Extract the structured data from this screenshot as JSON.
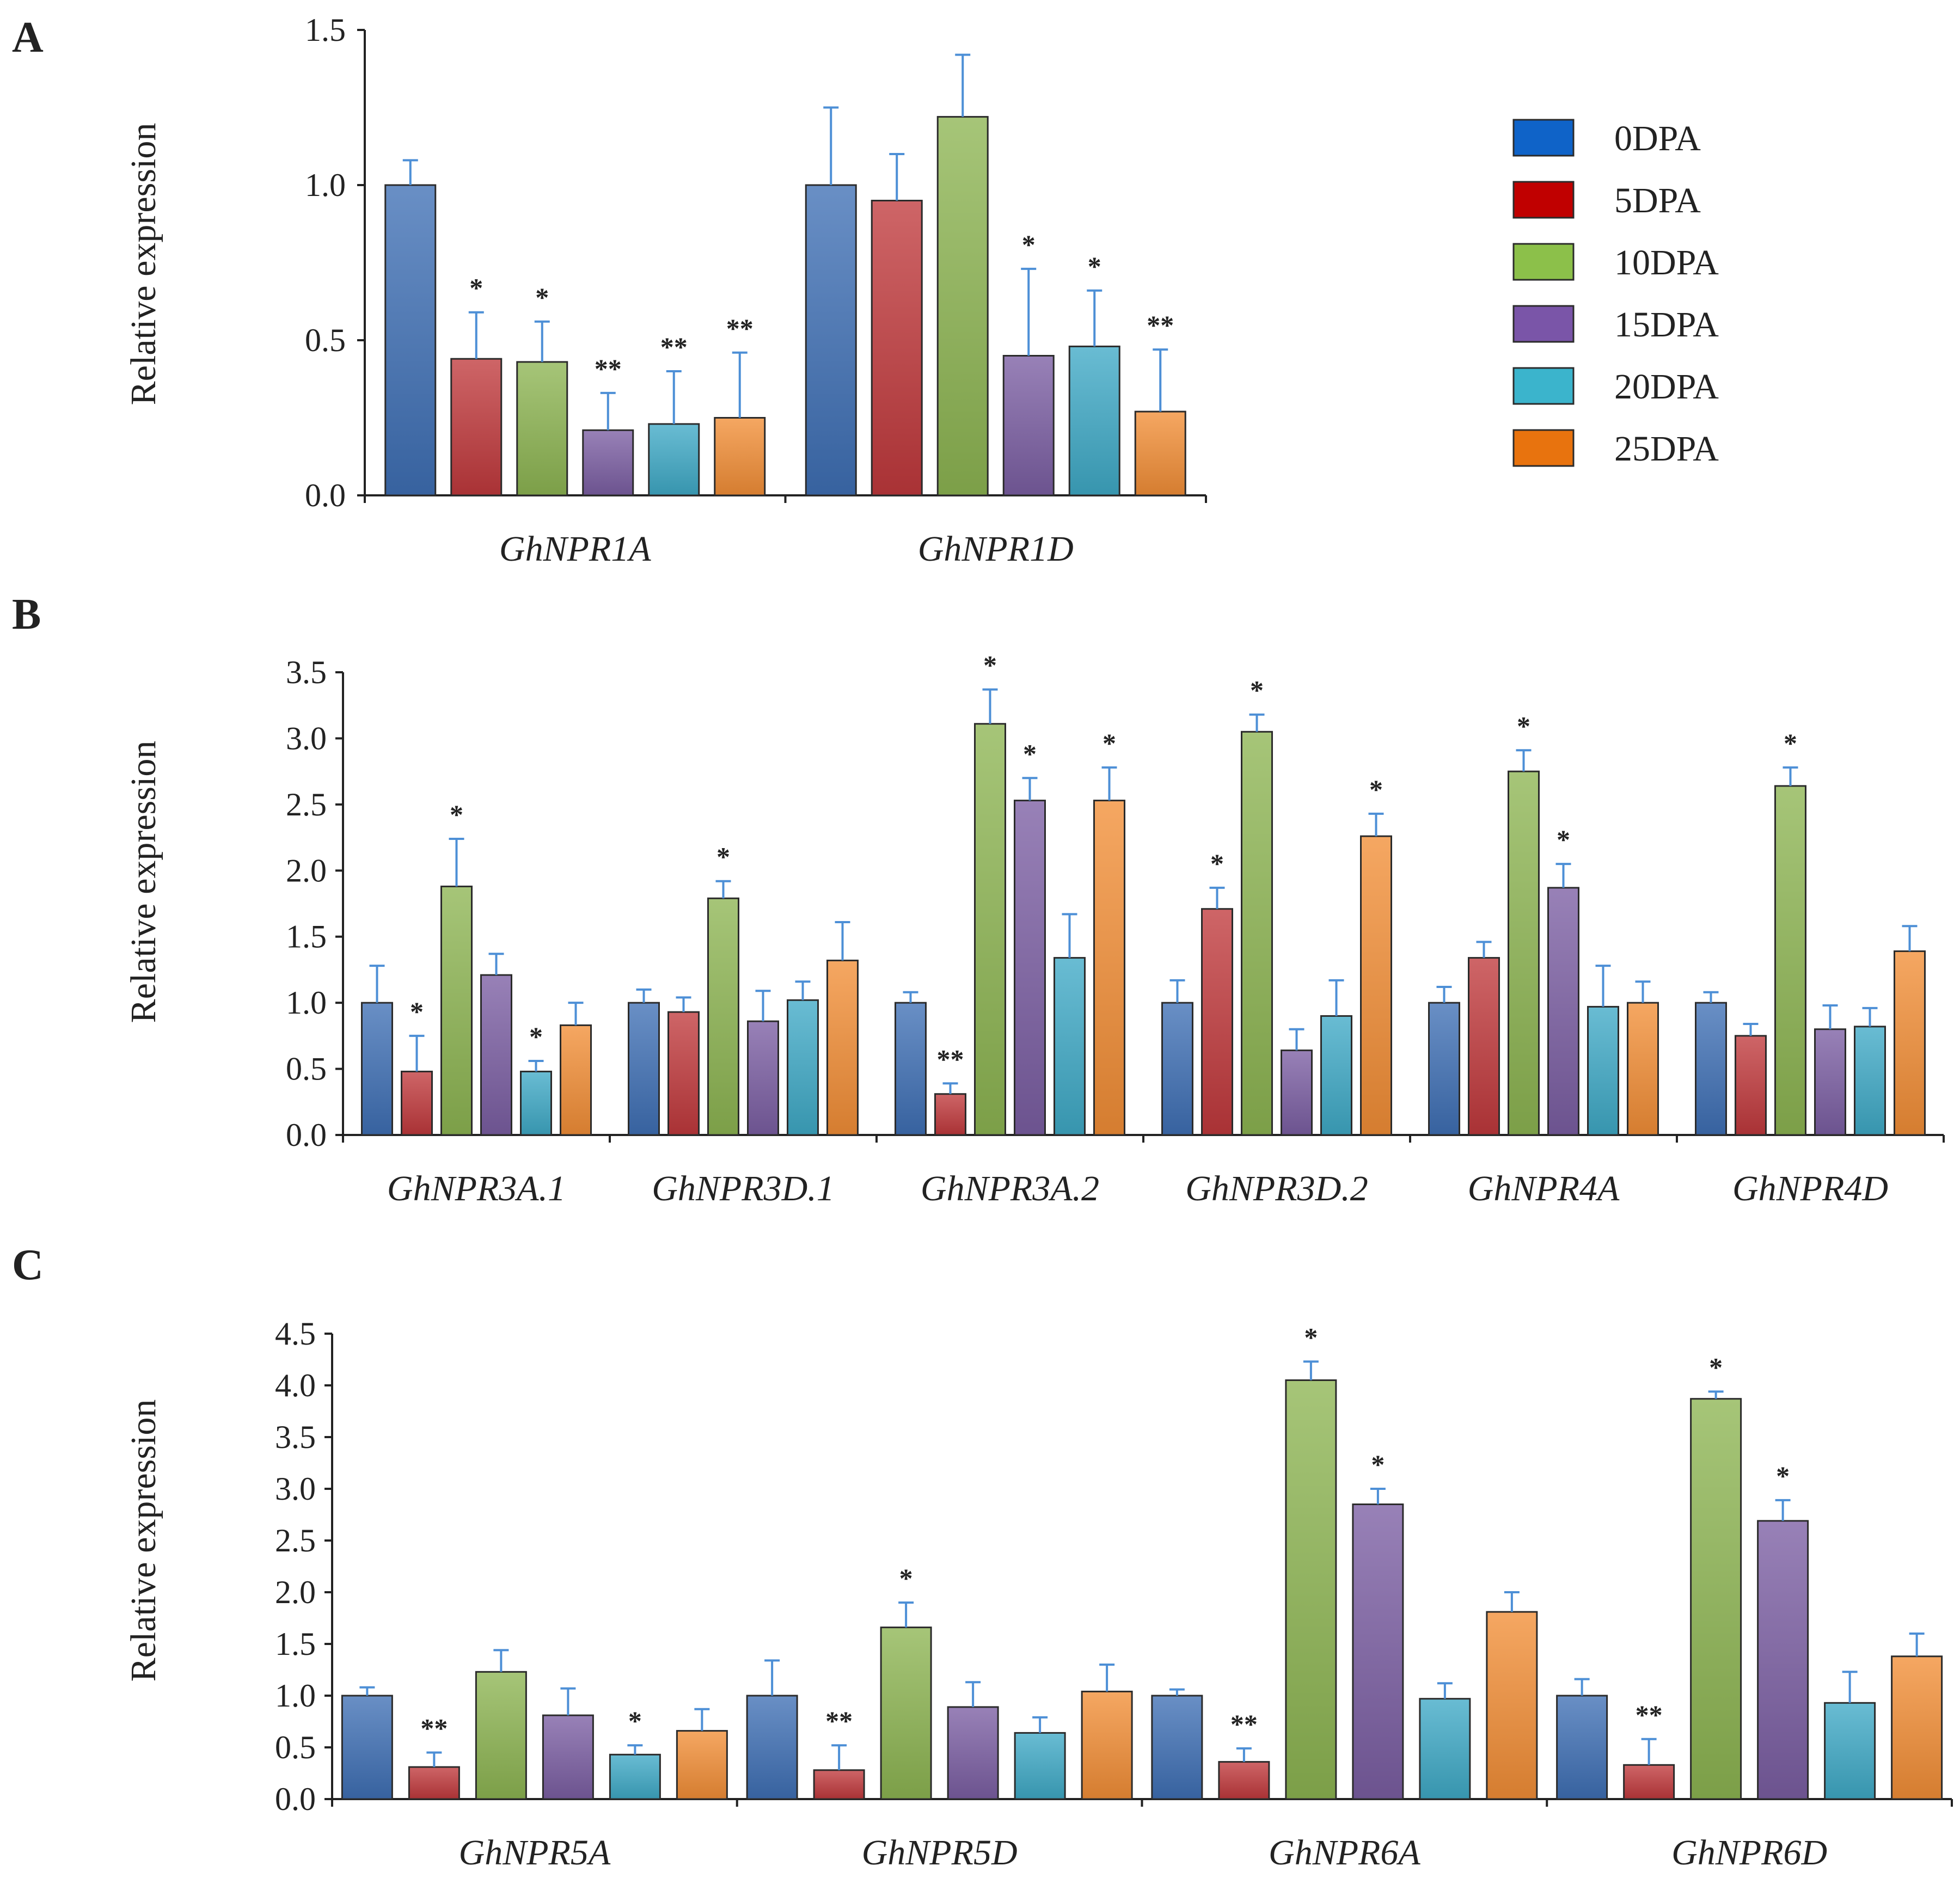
{
  "series_colors": {
    "0DPA": "#3F6FB5",
    "5DPA": "#C0393C",
    "10DPA": "#8DB552",
    "15DPA": "#7B5EA3",
    "20DPA": "#3FA9C6",
    "25DPA": "#F28E36"
  },
  "legend": {
    "entries": [
      {
        "label": "0DPA",
        "color": "#0F63C8"
      },
      {
        "label": "5DPA",
        "color": "#C00000"
      },
      {
        "label": "10DPA",
        "color": "#8CC04A"
      },
      {
        "label": "15DPA",
        "color": "#7A55A8"
      },
      {
        "label": "20DPA",
        "color": "#3BB4CC"
      },
      {
        "label": "25DPA",
        "color": "#E8730E"
      }
    ]
  },
  "chart_data": [
    {
      "panel": "A",
      "type": "bar",
      "ylabel": "Relative expression",
      "ylim": [
        0,
        1.5
      ],
      "yticks": [
        "0.0",
        "0.5",
        "1.0",
        "1.5"
      ],
      "categories": [
        "GhNPR1A",
        "GhNPR1D"
      ],
      "series": [
        {
          "name": "0DPA",
          "values": [
            1.0,
            1.0
          ],
          "errors": [
            0.08,
            0.25
          ],
          "sig": [
            "",
            ""
          ]
        },
        {
          "name": "5DPA",
          "values": [
            0.44,
            0.95
          ],
          "errors": [
            0.15,
            0.15
          ],
          "sig": [
            "*",
            ""
          ]
        },
        {
          "name": "10DPA",
          "values": [
            0.43,
            1.22
          ],
          "errors": [
            0.13,
            0.2
          ],
          "sig": [
            "*",
            ""
          ]
        },
        {
          "name": "15DPA",
          "values": [
            0.21,
            0.45
          ],
          "errors": [
            0.12,
            0.28
          ],
          "sig": [
            "**",
            "*"
          ]
        },
        {
          "name": "20DPA",
          "values": [
            0.23,
            0.48
          ],
          "errors": [
            0.17,
            0.18
          ],
          "sig": [
            "**",
            "*"
          ]
        },
        {
          "name": "25DPA",
          "values": [
            0.25,
            0.27
          ],
          "errors": [
            0.21,
            0.2
          ],
          "sig": [
            "**",
            "**"
          ]
        }
      ]
    },
    {
      "panel": "B",
      "type": "bar",
      "ylabel": "Relative expression",
      "ylim": [
        0,
        3.5
      ],
      "yticks": [
        "0.0",
        "0.5",
        "1.0",
        "1.5",
        "2.0",
        "2.5",
        "3.0",
        "3.5"
      ],
      "categories": [
        "GhNPR3A.1",
        "GhNPR3D.1",
        "GhNPR3A.2",
        "GhNPR3D.2",
        "GhNPR4A",
        "GhNPR4D"
      ],
      "series": [
        {
          "name": "0DPA",
          "values": [
            1.0,
            1.0,
            1.0,
            1.0,
            1.0,
            1.0
          ],
          "errors": [
            0.28,
            0.1,
            0.08,
            0.17,
            0.12,
            0.08
          ],
          "sig": [
            "",
            "",
            "",
            "",
            "",
            ""
          ]
        },
        {
          "name": "5DPA",
          "values": [
            0.48,
            0.93,
            0.31,
            1.71,
            1.34,
            0.75
          ],
          "errors": [
            0.27,
            0.11,
            0.08,
            0.16,
            0.12,
            0.09
          ],
          "sig": [
            "*",
            "",
            "**",
            "*",
            "",
            ""
          ]
        },
        {
          "name": "10DPA",
          "values": [
            1.88,
            1.79,
            3.11,
            3.05,
            2.75,
            2.64
          ],
          "errors": [
            0.36,
            0.13,
            0.26,
            0.13,
            0.16,
            0.14
          ],
          "sig": [
            "*",
            "*",
            "*",
            "*",
            "*",
            "*"
          ]
        },
        {
          "name": "15DPA",
          "values": [
            1.21,
            0.86,
            2.53,
            0.64,
            1.87,
            0.8
          ],
          "errors": [
            0.16,
            0.23,
            0.17,
            0.16,
            0.18,
            0.18
          ],
          "sig": [
            "",
            "",
            "*",
            "",
            "*",
            ""
          ]
        },
        {
          "name": "20DPA",
          "values": [
            0.48,
            1.02,
            1.34,
            0.9,
            0.97,
            0.82
          ],
          "errors": [
            0.08,
            0.14,
            0.33,
            0.27,
            0.31,
            0.14
          ],
          "sig": [
            "*",
            "",
            "",
            "",
            "",
            ""
          ]
        },
        {
          "name": "25DPA",
          "values": [
            0.83,
            1.32,
            2.53,
            2.26,
            1.0,
            1.39
          ],
          "errors": [
            0.17,
            0.29,
            0.25,
            0.17,
            0.16,
            0.19
          ],
          "sig": [
            "",
            "",
            "*",
            "*",
            "",
            ""
          ]
        }
      ]
    },
    {
      "panel": "C",
      "type": "bar",
      "ylabel": "Relative expression",
      "ylim": [
        0,
        4.5
      ],
      "yticks": [
        "0.0",
        "0.5",
        "1.0",
        "1.5",
        "2.0",
        "2.5",
        "3.0",
        "3.5",
        "4.0",
        "4.5"
      ],
      "categories": [
        "GhNPR5A",
        "GhNPR5D",
        "GhNPR6A",
        "GhNPR6D"
      ],
      "series": [
        {
          "name": "0DPA",
          "values": [
            1.0,
            1.0,
            1.0,
            1.0
          ],
          "errors": [
            0.08,
            0.34,
            0.06,
            0.16
          ],
          "sig": [
            "",
            "",
            "",
            ""
          ]
        },
        {
          "name": "5DPA",
          "values": [
            0.31,
            0.28,
            0.36,
            0.33
          ],
          "errors": [
            0.14,
            0.24,
            0.13,
            0.25
          ],
          "sig": [
            "**",
            "**",
            "**",
            "**"
          ]
        },
        {
          "name": "10DPA",
          "values": [
            1.23,
            1.66,
            4.05,
            3.87
          ],
          "errors": [
            0.21,
            0.24,
            0.18,
            0.07
          ],
          "sig": [
            "",
            "*",
            "*",
            "*"
          ]
        },
        {
          "name": "15DPA",
          "values": [
            0.81,
            0.89,
            2.85,
            2.69
          ],
          "errors": [
            0.26,
            0.24,
            0.15,
            0.2
          ],
          "sig": [
            "",
            "",
            "*",
            "*"
          ]
        },
        {
          "name": "20DPA",
          "values": [
            0.43,
            0.64,
            0.97,
            0.93
          ],
          "errors": [
            0.09,
            0.15,
            0.15,
            0.3
          ],
          "sig": [
            "*",
            "",
            "",
            ""
          ]
        },
        {
          "name": "25DPA",
          "values": [
            0.66,
            1.04,
            1.81,
            1.38
          ],
          "errors": [
            0.21,
            0.26,
            0.19,
            0.22
          ],
          "sig": [
            "",
            "",
            "",
            ""
          ]
        }
      ]
    }
  ]
}
